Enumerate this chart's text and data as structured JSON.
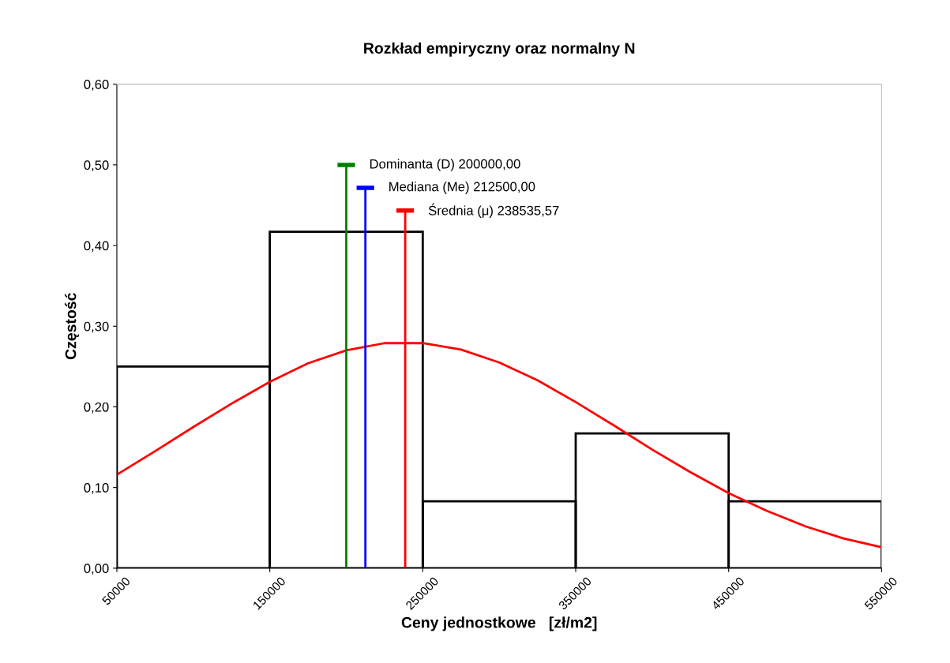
{
  "chart_data": {
    "type": "histogram",
    "title": "Rozkład empiryczny oraz normalny N",
    "xlabel": "Ceny jednostkowe   [zł/m2]",
    "ylabel": "Częstość",
    "bins": [
      50000,
      150000,
      250000,
      350000,
      450000,
      550000
    ],
    "values": [
      0.25,
      0.417,
      0.083,
      0.167,
      0.083
    ],
    "color": "#000000",
    "series": [
      {
        "type": "line",
        "color": "#ff0000",
        "x": [
          50000,
          75000,
          100000,
          125000,
          150000,
          175000,
          200000,
          225000,
          250000,
          275000,
          300000,
          325000,
          350000,
          375000,
          400000,
          425000,
          450000,
          475000,
          500000,
          525000,
          550000
        ],
        "values": [
          0.116,
          0.145,
          0.175,
          0.204,
          0.231,
          0.254,
          0.27,
          0.279,
          0.279,
          0.271,
          0.255,
          0.233,
          0.206,
          0.177,
          0.147,
          0.119,
          0.093,
          0.071,
          0.052,
          0.037,
          0.026
        ]
      }
    ],
    "ref_lines": [
      {
        "axis": "x",
        "value": 200000,
        "label": "Dominanta (D) 200000,00",
        "color": "#008000"
      },
      {
        "axis": "x",
        "value": 212500,
        "label": "Mediana (Me) 212500,00",
        "color": "#0000ff"
      },
      {
        "axis": "x",
        "value": 238535.57,
        "label": "Średnia (μ) 238535,57",
        "color": "#ff0000"
      }
    ],
    "xlim": [
      50000,
      550000
    ],
    "xticks": [
      50000,
      150000,
      250000,
      350000,
      450000,
      550000
    ],
    "ylim": [
      0,
      0.6
    ],
    "yticks": [
      {
        "value": 0,
        "label": "0,00"
      },
      {
        "value": 0.1,
        "label": "0,10"
      },
      {
        "value": 0.2,
        "label": "0,20"
      },
      {
        "value": 0.3,
        "label": "0,30"
      },
      {
        "value": 0.4,
        "label": "0,40"
      },
      {
        "value": 0.5,
        "label": "0,50"
      },
      {
        "value": 0.6,
        "label": "0,60"
      }
    ],
    "grid": false,
    "marker": "none",
    "line_style": "solid"
  }
}
